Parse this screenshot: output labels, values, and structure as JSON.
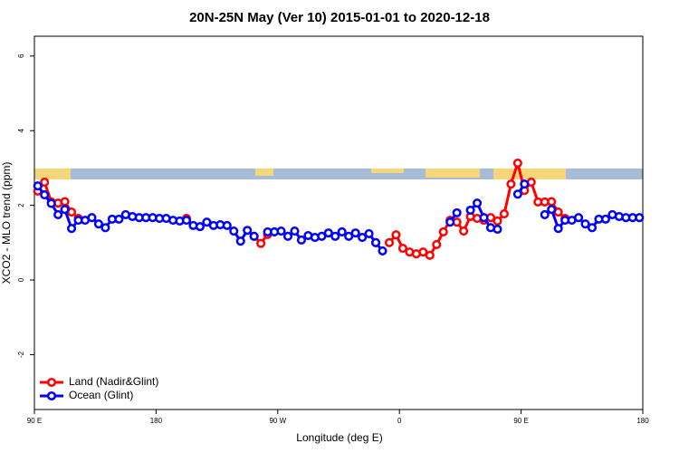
{
  "chart_data": {
    "type": "line",
    "title": "20N-25N May (Ver 10)   2015-01-01 to 2020-12-18",
    "x_label": "Longitude (deg E)",
    "y_label": "XCO2 - MLO trend (ppm)",
    "xlim": [
      90,
      540
    ],
    "xticks": [
      {
        "value": 90,
        "label": "90 E"
      },
      180,
      {
        "value": 270,
        "label": "90 W"
      },
      {
        "value": 360,
        "label": "0"
      },
      {
        "value": 450,
        "label": "90 E"
      },
      {
        "value": 540,
        "label": "180"
      }
    ],
    "ylim": [
      -3.47,
      6.53
    ],
    "yticks": [
      -2,
      0,
      2,
      4,
      6
    ],
    "legend": "bottom-left",
    "x": [
      92.5,
      97.5,
      102.5,
      107.5,
      112.5,
      117.5,
      122.5,
      127.5,
      132.5,
      137.5,
      142.5,
      147.5,
      152.5,
      157.5,
      162.5,
      167.5,
      172.5,
      177.5,
      182.5,
      187.5,
      192.5,
      197.5,
      202.5,
      207.5,
      212.5,
      217.5,
      222.5,
      227.5,
      232.5,
      237.5,
      242.5,
      247.5,
      252.5,
      257.5,
      262.5,
      267.5,
      272.5,
      277.5,
      282.5,
      287.5,
      292.5,
      297.5,
      302.5,
      307.5,
      312.5,
      317.5,
      322.5,
      327.5,
      332.5,
      337.5,
      342.5,
      347.5,
      352.5,
      357.5,
      362.5,
      367.5,
      372.5,
      377.5,
      382.5,
      387.5,
      392.5,
      397.5,
      402.5,
      407.5,
      412.5,
      417.5,
      422.5,
      427.5,
      432.5,
      437.5,
      442.5,
      447.5,
      452.5,
      457.5,
      462.5,
      467.5,
      472.5,
      477.5,
      482.5,
      487.5,
      492.5,
      497.5,
      502.5,
      507.5,
      512.5,
      517.5,
      522.5,
      527.5,
      532.5,
      537.5
    ],
    "series": [
      {
        "name": "Land (Nadir&Glint)",
        "color": "#ff0000",
        "values": [
          2.38,
          2.62,
          2.09,
          2.06,
          2.1,
          1.82,
          1.65,
          null,
          null,
          null,
          null,
          null,
          null,
          null,
          null,
          null,
          null,
          null,
          null,
          null,
          null,
          null,
          1.65,
          null,
          null,
          null,
          null,
          null,
          null,
          null,
          null,
          null,
          1.17,
          0.98,
          1.22,
          null,
          null,
          null,
          null,
          null,
          null,
          null,
          null,
          null,
          null,
          null,
          null,
          null,
          null,
          null,
          1.0,
          null,
          1.0,
          1.21,
          0.85,
          0.75,
          0.7,
          0.75,
          0.66,
          0.95,
          1.29,
          1.6,
          1.55,
          1.31,
          1.7,
          1.65,
          1.6,
          1.67,
          1.58,
          1.77,
          2.57,
          3.13,
          2.4,
          2.62,
          2.09,
          2.09,
          2.1,
          1.82,
          1.65,
          null,
          null,
          null,
          null,
          null,
          null,
          null,
          null,
          null,
          null,
          null
        ]
      },
      {
        "name": "Ocean (Glint)",
        "color": "#0000ff",
        "values": [
          2.52,
          2.28,
          2.05,
          1.75,
          1.89,
          1.38,
          1.6,
          1.6,
          1.67,
          1.5,
          1.4,
          1.63,
          1.63,
          1.75,
          1.7,
          1.67,
          1.67,
          1.67,
          1.65,
          1.65,
          1.6,
          1.58,
          1.6,
          1.46,
          1.43,
          1.55,
          1.46,
          1.48,
          1.46,
          1.31,
          1.04,
          1.33,
          1.17,
          null,
          1.29,
          1.29,
          1.31,
          1.17,
          1.31,
          1.07,
          1.19,
          1.14,
          1.17,
          1.26,
          1.17,
          1.29,
          1.17,
          1.26,
          1.14,
          1.24,
          1.0,
          0.78,
          null,
          null,
          null,
          null,
          null,
          null,
          null,
          null,
          null,
          1.55,
          1.8,
          null,
          1.87,
          2.06,
          1.67,
          1.4,
          1.36,
          null,
          null,
          2.3,
          2.57,
          null,
          null,
          1.75,
          1.89,
          1.38,
          1.6,
          1.6,
          1.67,
          1.5,
          1.4,
          1.63,
          1.63,
          1.75,
          1.7,
          1.67,
          1.67,
          1.67
        ]
      }
    ]
  }
}
